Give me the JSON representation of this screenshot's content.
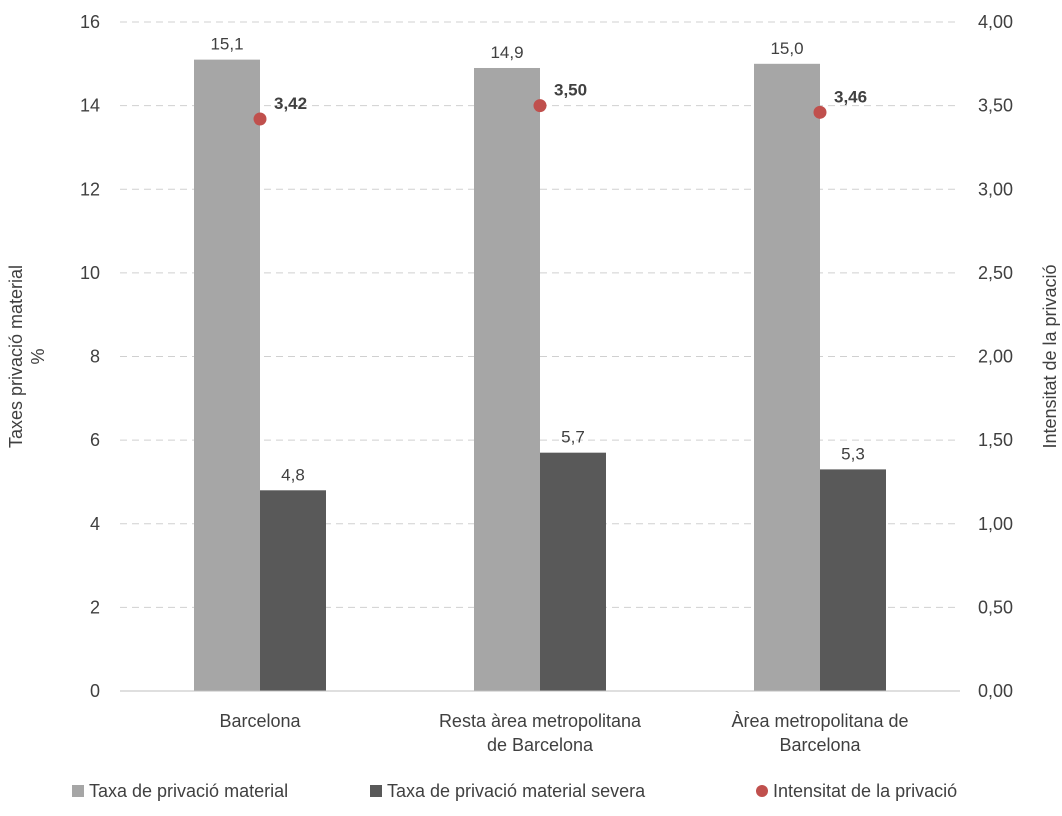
{
  "chart_data": {
    "type": "bar",
    "categories": [
      [
        "Barcelona"
      ],
      [
        "Resta àrea metropolitana",
        "de Barcelona"
      ],
      [
        "Àrea metropolitana de",
        "Barcelona"
      ]
    ],
    "series": [
      {
        "name": "Taxa de privació material",
        "axis": "left",
        "kind": "bar",
        "values": [
          15.1,
          14.9,
          15.0
        ],
        "labels": [
          "15,1",
          "14,9",
          "15,0"
        ],
        "color": "#a6a6a6"
      },
      {
        "name": "Taxa de privació material severa",
        "axis": "left",
        "kind": "bar",
        "values": [
          4.8,
          5.7,
          5.3
        ],
        "labels": [
          "4,8",
          "5,7",
          "5,3"
        ],
        "color": "#595959"
      },
      {
        "name": "Intensitat de la privació",
        "axis": "right",
        "kind": "scatter",
        "values": [
          3.42,
          3.5,
          3.46
        ],
        "labels": [
          "3,42",
          "3,50",
          "3,46"
        ],
        "color": "#c0504d"
      }
    ],
    "y_left": {
      "label": [
        "Taxes privació material",
        "%"
      ],
      "ylim": [
        0,
        16
      ],
      "ticks": [
        "0",
        "2",
        "4",
        "6",
        "8",
        "10",
        "12",
        "14",
        "16"
      ]
    },
    "y_right": {
      "label": "Intensitat de la privació",
      "ylim": [
        0,
        4
      ],
      "ticks": [
        "0,00",
        "0,50",
        "1,00",
        "1,50",
        "2,00",
        "2,50",
        "3,00",
        "3,50",
        "4,00"
      ]
    },
    "grid": true,
    "legend_position": "bottom"
  }
}
